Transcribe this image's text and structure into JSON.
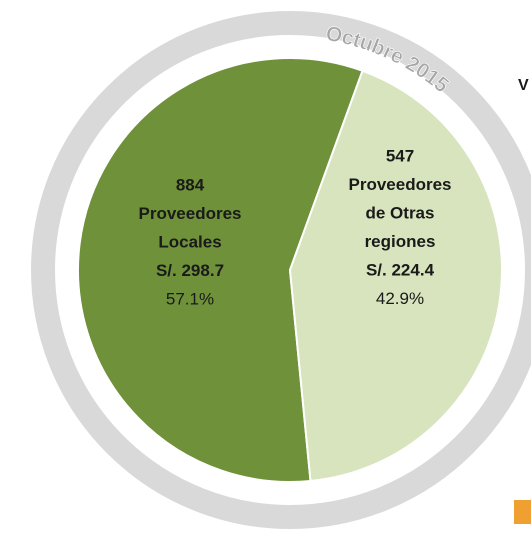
{
  "chart_data": {
    "type": "pie",
    "period": "Octubre 2015",
    "side_text": "V",
    "counts": [
      884,
      547
    ],
    "name_lines": [
      [
        "Proveedores",
        "Locales"
      ],
      [
        "Proveedores",
        "de Otras",
        "regiones"
      ]
    ],
    "amounts": [
      "S/.  298.7",
      "S/.  224.4"
    ],
    "values": [
      57.1,
      42.9
    ],
    "value_labels": [
      "57.1%",
      "42.9%"
    ],
    "colors": [
      "#6f9139",
      "#d7e4bd"
    ]
  }
}
